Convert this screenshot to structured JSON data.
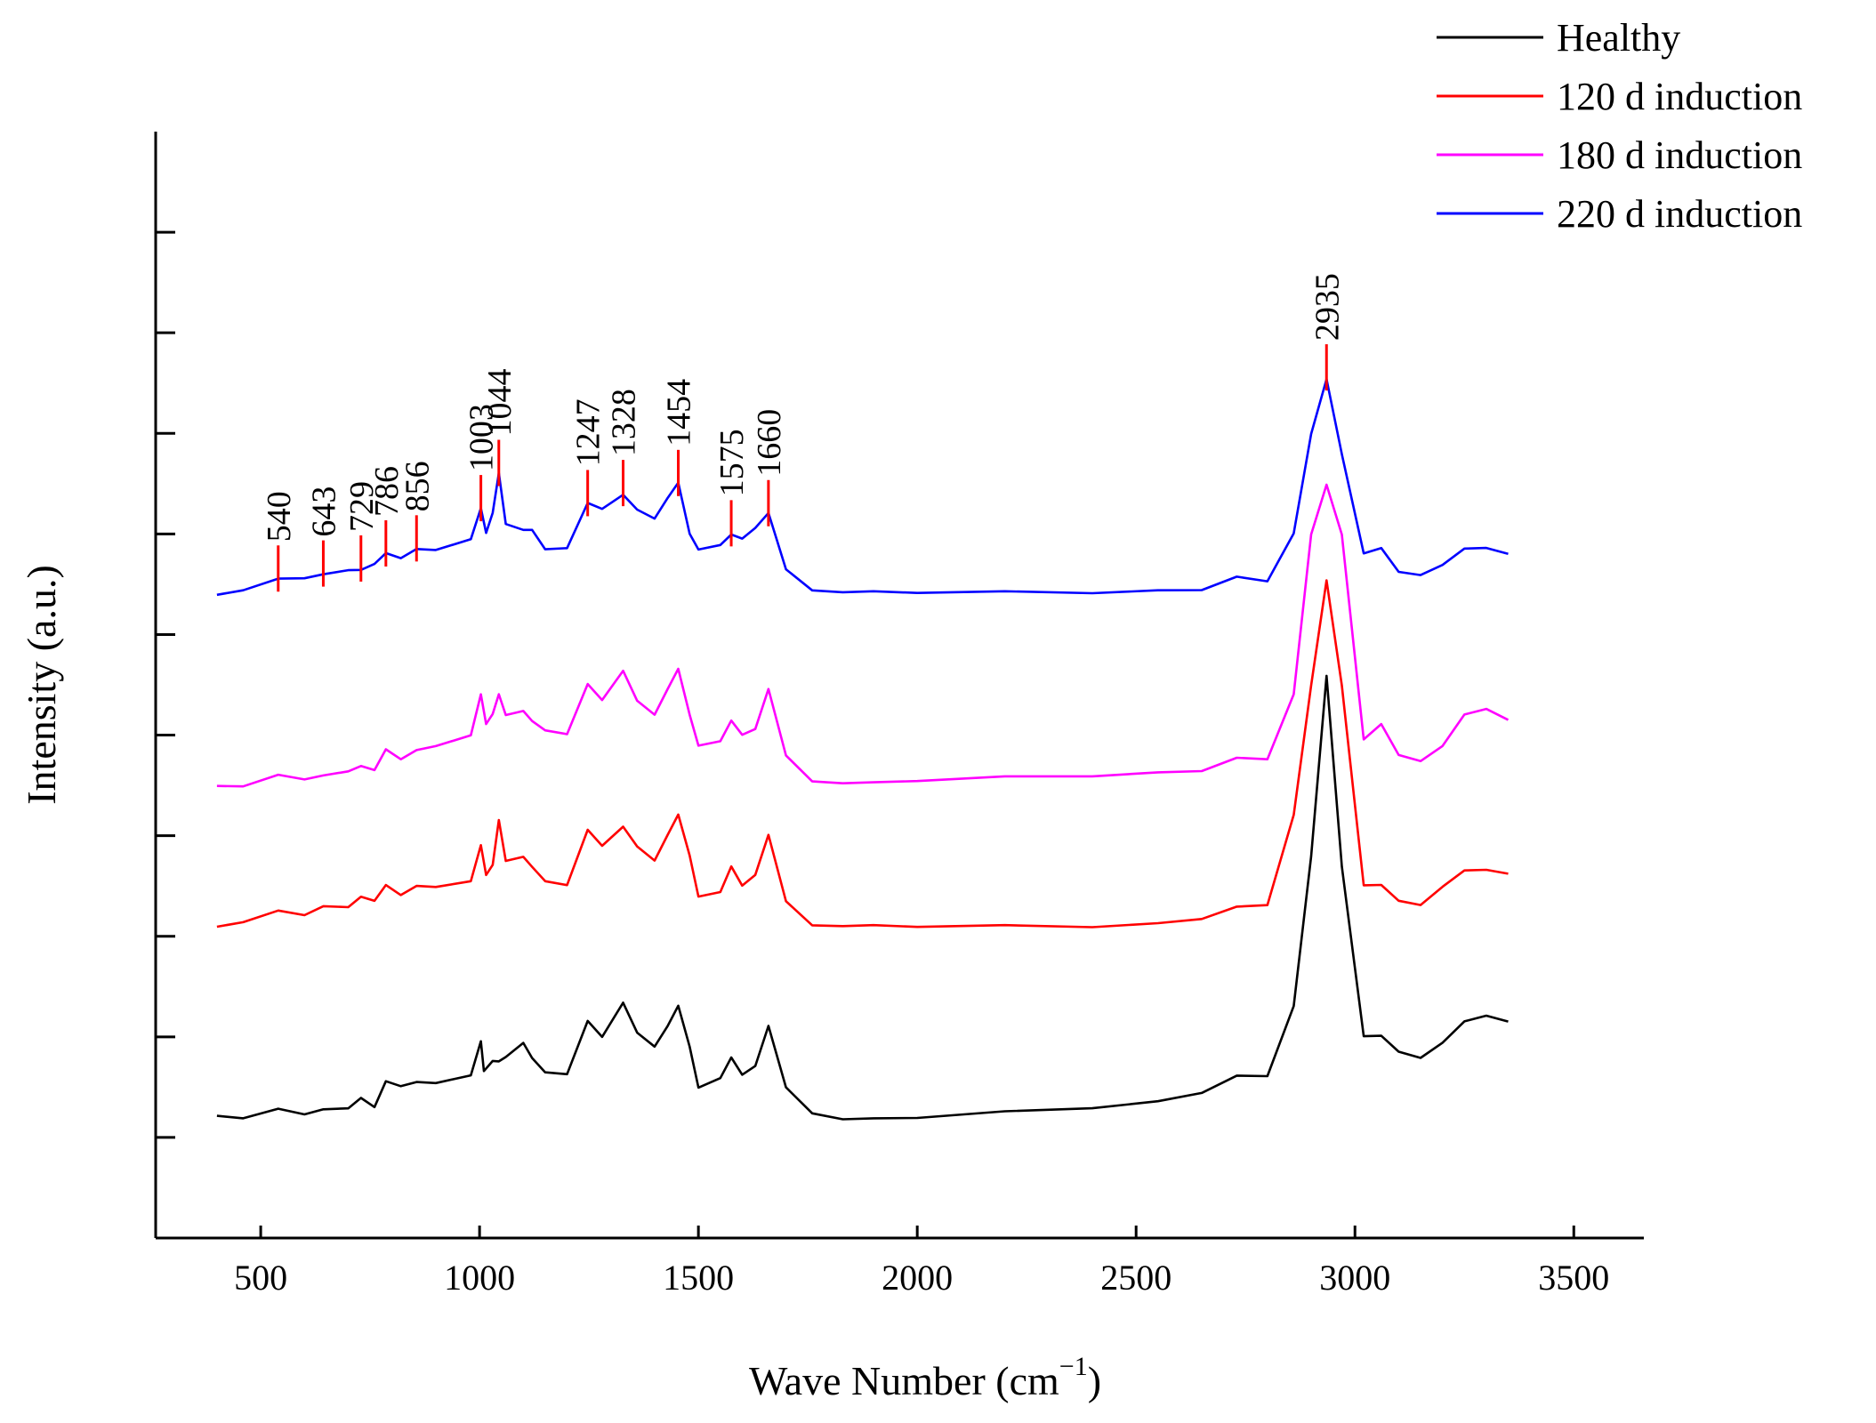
{
  "chart_data": {
    "type": "line",
    "title": "",
    "xlabel": "Wave Number (cm",
    "xlabel_sup": "−1",
    "xlabel_close": ")",
    "ylabel": "Intensity (a.u.)",
    "xlim": [
      260,
      3660
    ],
    "ylim": [
      -1.0,
      10.0
    ],
    "xticks": [
      500,
      1000,
      1500,
      2000,
      2500,
      3000,
      3500
    ],
    "xtick_labels": [
      "500",
      "1000",
      "1500",
      "2000",
      "2500",
      "3000",
      "3500"
    ],
    "yticks": [
      0,
      1,
      2,
      3,
      4,
      5,
      6,
      7,
      8,
      9
    ],
    "legend_position": "top-right",
    "series": [
      {
        "name": "Healthy",
        "color": "#000000",
        "x": [
          400,
          460,
          540,
          600,
          643,
          700,
          729,
          760,
          786,
          820,
          856,
          900,
          980,
          1003,
          1010,
          1030,
          1044,
          1060,
          1100,
          1120,
          1150,
          1200,
          1247,
          1280,
          1328,
          1360,
          1400,
          1430,
          1454,
          1480,
          1500,
          1550,
          1575,
          1600,
          1630,
          1660,
          1700,
          1760,
          1830,
          1900,
          2000,
          2200,
          2400,
          2550,
          2650,
          2730,
          2800,
          2860,
          2900,
          2935,
          2970,
          3020,
          3060,
          3100,
          3150,
          3200,
          3250,
          3300,
          3350
        ],
        "y": [
          0.22,
          0.2,
          0.28,
          0.22,
          0.28,
          0.3,
          0.4,
          0.3,
          0.55,
          0.5,
          0.55,
          0.55,
          0.62,
          0.95,
          0.65,
          0.75,
          0.75,
          0.8,
          0.95,
          0.8,
          0.65,
          0.62,
          1.15,
          1.0,
          1.35,
          1.05,
          0.9,
          1.1,
          1.3,
          0.9,
          0.5,
          0.6,
          0.8,
          0.62,
          0.7,
          1.1,
          0.5,
          0.25,
          0.18,
          0.18,
          0.2,
          0.25,
          0.3,
          0.35,
          0.45,
          0.62,
          0.6,
          1.3,
          2.8,
          4.6,
          2.7,
          1.0,
          1.0,
          0.85,
          0.8,
          0.95,
          1.15,
          1.2,
          1.15
        ]
      },
      {
        "name": "120 d induction",
        "color": "#ff0000",
        "x": [
          400,
          460,
          540,
          600,
          643,
          700,
          729,
          760,
          786,
          820,
          856,
          900,
          980,
          1003,
          1015,
          1030,
          1044,
          1060,
          1100,
          1120,
          1150,
          1200,
          1247,
          1280,
          1328,
          1360,
          1400,
          1430,
          1454,
          1480,
          1500,
          1550,
          1575,
          1600,
          1630,
          1660,
          1700,
          1760,
          1830,
          1900,
          2000,
          2200,
          2400,
          2550,
          2650,
          2730,
          2800,
          2860,
          2900,
          2935,
          2970,
          3020,
          3060,
          3100,
          3150,
          3200,
          3250,
          3300,
          3350
        ],
        "y": [
          2.1,
          2.15,
          2.25,
          2.2,
          2.3,
          2.3,
          2.4,
          2.35,
          2.5,
          2.4,
          2.5,
          2.5,
          2.55,
          2.9,
          2.6,
          2.7,
          3.15,
          2.75,
          2.8,
          2.7,
          2.55,
          2.5,
          3.05,
          2.9,
          3.1,
          2.9,
          2.75,
          3.0,
          3.2,
          2.8,
          2.4,
          2.45,
          2.7,
          2.5,
          2.6,
          3.0,
          2.35,
          2.12,
          2.1,
          2.1,
          2.1,
          2.1,
          2.1,
          2.12,
          2.18,
          2.3,
          2.3,
          3.2,
          4.5,
          5.55,
          4.5,
          2.5,
          2.5,
          2.35,
          2.32,
          2.5,
          2.65,
          2.65,
          2.62
        ]
      },
      {
        "name": "180 d induction",
        "color": "#ff00ff",
        "x": [
          400,
          460,
          540,
          600,
          643,
          700,
          729,
          760,
          786,
          820,
          856,
          900,
          980,
          1003,
          1015,
          1030,
          1044,
          1060,
          1100,
          1120,
          1150,
          1200,
          1247,
          1280,
          1328,
          1360,
          1400,
          1430,
          1454,
          1480,
          1500,
          1550,
          1575,
          1600,
          1630,
          1660,
          1700,
          1760,
          1830,
          1900,
          2000,
          2200,
          2400,
          2550,
          2650,
          2730,
          2800,
          2860,
          2900,
          2935,
          2970,
          3020,
          3060,
          3100,
          3150,
          3200,
          3250,
          3300,
          3350
        ],
        "y": [
          3.5,
          3.5,
          3.6,
          3.55,
          3.6,
          3.65,
          3.7,
          3.65,
          3.85,
          3.75,
          3.85,
          3.9,
          4.0,
          4.4,
          4.1,
          4.2,
          4.4,
          4.2,
          4.25,
          4.15,
          4.05,
          4.0,
          4.5,
          4.35,
          4.65,
          4.35,
          4.2,
          4.45,
          4.65,
          4.2,
          3.9,
          3.95,
          4.15,
          4.0,
          4.05,
          4.45,
          3.8,
          3.55,
          3.52,
          3.52,
          3.55,
          3.58,
          3.6,
          3.62,
          3.65,
          3.78,
          3.75,
          4.4,
          6.0,
          6.5,
          6.0,
          3.95,
          4.1,
          3.8,
          3.75,
          3.9,
          4.2,
          4.25,
          4.15
        ]
      },
      {
        "name": "220 d induction",
        "color": "#0000ff",
        "x": [
          400,
          460,
          540,
          600,
          643,
          700,
          729,
          760,
          786,
          820,
          856,
          900,
          980,
          1003,
          1015,
          1030,
          1044,
          1060,
          1100,
          1120,
          1150,
          1200,
          1247,
          1280,
          1328,
          1360,
          1400,
          1430,
          1454,
          1480,
          1500,
          1550,
          1575,
          1600,
          1630,
          1660,
          1700,
          1760,
          1830,
          1900,
          2000,
          2200,
          2400,
          2550,
          2650,
          2730,
          2800,
          2860,
          2900,
          2935,
          2970,
          3020,
          3060,
          3100,
          3150,
          3200,
          3250,
          3300,
          3350
        ],
        "y": [
          5.4,
          5.45,
          5.55,
          5.55,
          5.6,
          5.65,
          5.65,
          5.7,
          5.8,
          5.75,
          5.85,
          5.85,
          5.95,
          6.25,
          6.0,
          6.2,
          6.6,
          6.1,
          6.05,
          6.05,
          5.85,
          5.85,
          6.3,
          6.25,
          6.4,
          6.25,
          6.15,
          6.35,
          6.5,
          6.0,
          5.85,
          5.9,
          6.0,
          5.95,
          6.05,
          6.2,
          5.65,
          5.45,
          5.42,
          5.42,
          5.42,
          5.42,
          5.42,
          5.43,
          5.45,
          5.58,
          5.52,
          6.0,
          7.0,
          7.55,
          6.8,
          5.8,
          5.85,
          5.62,
          5.6,
          5.7,
          5.85,
          5.85,
          5.8
        ]
      }
    ],
    "annotations": {
      "peaks": [
        {
          "label": "540",
          "x": 540
        },
        {
          "label": "643",
          "x": 643
        },
        {
          "label": "729",
          "x": 729
        },
        {
          "label": "786",
          "x": 786
        },
        {
          "label": "856",
          "x": 856
        },
        {
          "label": "1003",
          "x": 1003
        },
        {
          "label": "1044",
          "x": 1044
        },
        {
          "label": "1247",
          "x": 1247
        },
        {
          "label": "1328",
          "x": 1328
        },
        {
          "label": "1454",
          "x": 1454
        },
        {
          "label": "1575",
          "x": 1575
        },
        {
          "label": "1660",
          "x": 1660
        },
        {
          "label": "2935",
          "x": 2935
        }
      ],
      "marker_color": "#ff0000",
      "series": "220 d induction"
    }
  }
}
